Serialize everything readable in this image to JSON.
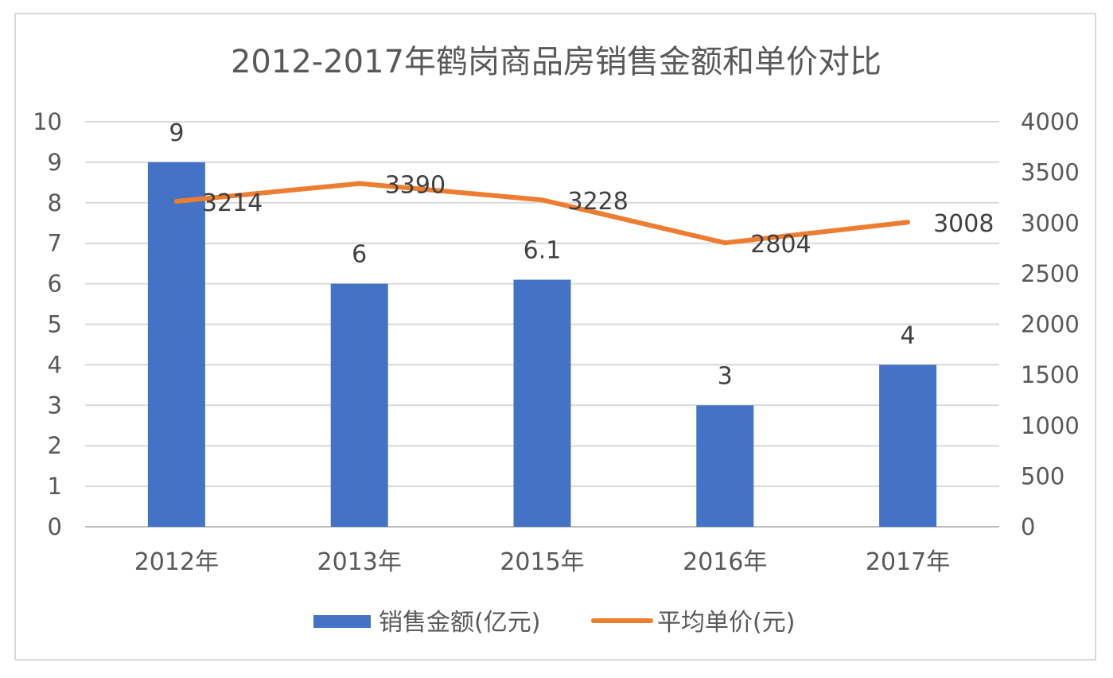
{
  "chart_data": {
    "type": "bar",
    "title": "2012-2017年鹤岗商品房销售金额和单价对比",
    "categories": [
      "2012年",
      "2013年",
      "2015年",
      "2016年",
      "2017年"
    ],
    "series": [
      {
        "name": "销售金额(亿元)",
        "type": "bar",
        "axis": "left",
        "color": "#4472C4",
        "values": [
          9,
          6,
          6.1,
          3,
          4
        ],
        "labels": [
          "9",
          "6",
          "6.1",
          "3",
          "4"
        ]
      },
      {
        "name": "平均单价(元)",
        "type": "line",
        "axis": "right",
        "color": "#ED7D31",
        "values": [
          3214,
          3390,
          3228,
          2804,
          3008
        ],
        "labels": [
          "3214",
          "3390",
          "3228",
          "2804",
          "3008"
        ]
      }
    ],
    "left_axis": {
      "ylim": [
        0,
        10
      ],
      "ticks": [
        "0",
        "1",
        "2",
        "3",
        "4",
        "5",
        "6",
        "7",
        "8",
        "9",
        "10"
      ]
    },
    "right_axis": {
      "ylim": [
        0,
        4000
      ],
      "ticks": [
        "0",
        "500",
        "1000",
        "1500",
        "2000",
        "2500",
        "3000",
        "3500",
        "4000"
      ]
    },
    "grid": true,
    "legend_position": "bottom"
  }
}
